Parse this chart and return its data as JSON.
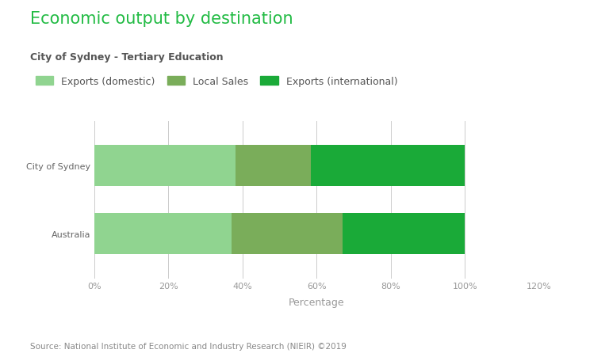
{
  "title": "Economic output by destination",
  "subtitle": "City of Sydney - Tertiary Education",
  "categories": [
    "City of Sydney",
    "Australia"
  ],
  "segments": [
    "Exports (domestic)",
    "Local Sales",
    "Exports (international)"
  ],
  "values": {
    "City of Sydney": [
      38.0,
      20.5,
      41.5
    ],
    "Australia": [
      37.0,
      30.0,
      33.0
    ]
  },
  "colors": [
    "#90d490",
    "#7aad5a",
    "#1aaa38"
  ],
  "xlabel": "Percentage",
  "xlim": [
    0,
    120
  ],
  "xticks": [
    0,
    20,
    40,
    60,
    80,
    100,
    120
  ],
  "xticklabels": [
    "0%",
    "20%",
    "40%",
    "60%",
    "80%",
    "100%",
    "120%"
  ],
  "title_color": "#22bb44",
  "subtitle_color": "#555555",
  "source_text": "Source: National Institute of Economic and Industry Research (NIEIR) ©2019",
  "background_color": "#ffffff",
  "grid_color": "#cccccc",
  "bar_height": 0.6,
  "title_fontsize": 15,
  "subtitle_fontsize": 9,
  "legend_fontsize": 9,
  "tick_fontsize": 8,
  "xlabel_fontsize": 9,
  "source_fontsize": 7.5,
  "ytick_color": "#666666",
  "xtick_color": "#999999"
}
